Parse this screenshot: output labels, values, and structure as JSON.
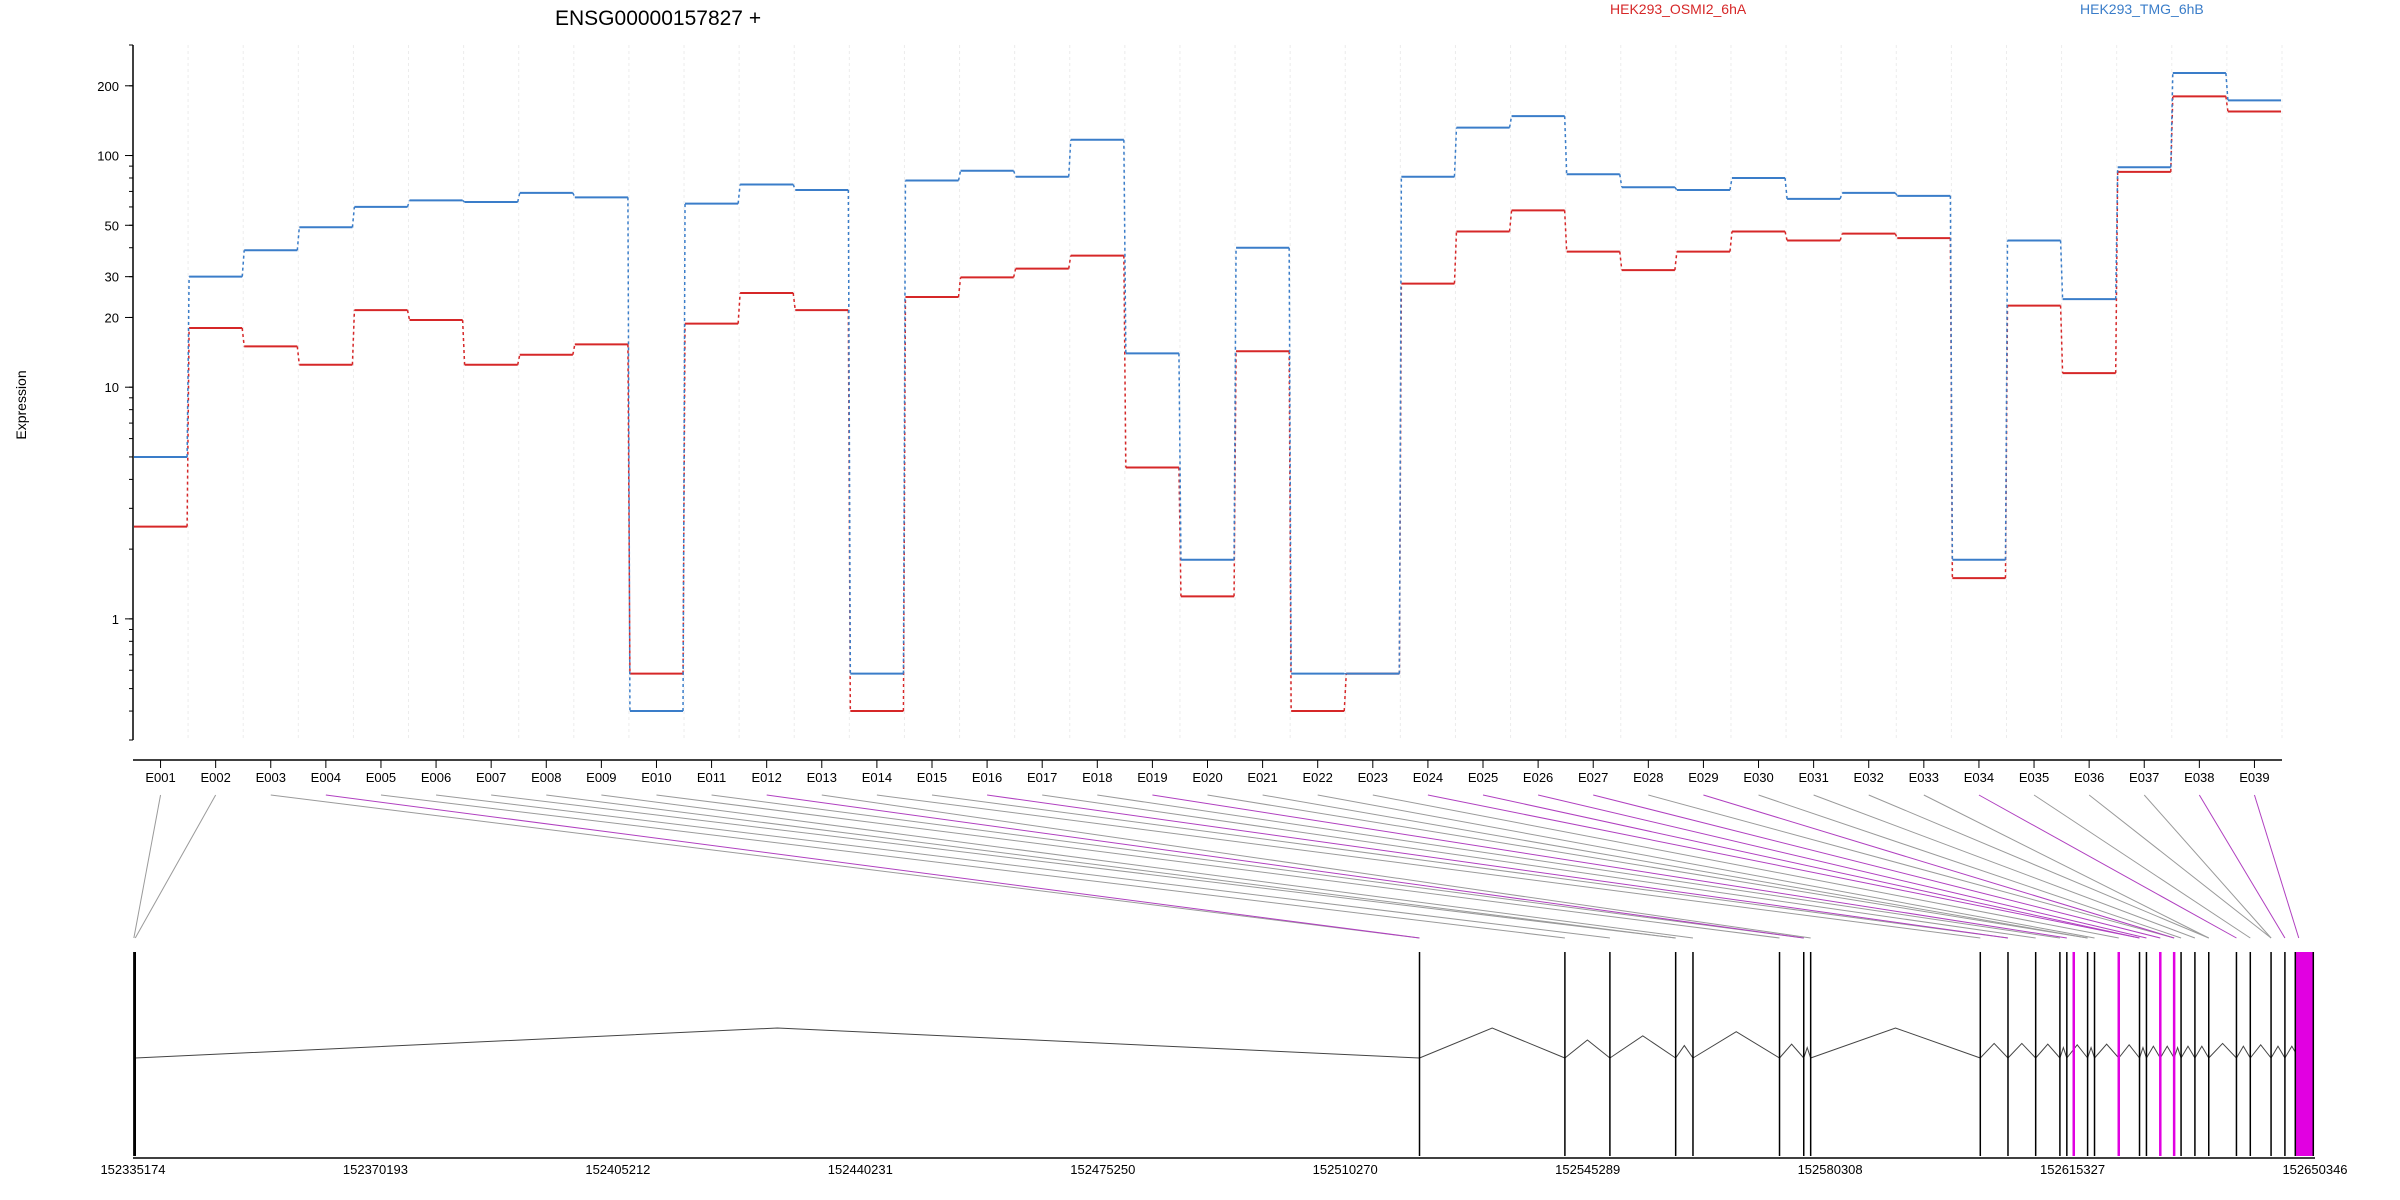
{
  "title": "ENSG00000157827 +",
  "ylabel": "Expression",
  "legend": [
    {
      "name": "HEK293_OSMI2_6hA",
      "color": "#d62728"
    },
    {
      "name": "HEK293_TMG_6hB",
      "color": "#3a7dc9"
    }
  ],
  "chart_data": {
    "type": "line",
    "log_scale": true,
    "title": "ENSG00000157827 +",
    "ylabel": "Expression",
    "ylim": [
      0.3,
      300
    ],
    "y_ticks": [
      1,
      10,
      20,
      30,
      50,
      100,
      200
    ],
    "categories": [
      "E001",
      "E002",
      "E003",
      "E004",
      "E005",
      "E006",
      "E007",
      "E008",
      "E009",
      "E010",
      "E011",
      "E012",
      "E013",
      "E014",
      "E015",
      "E016",
      "E017",
      "E018",
      "E019",
      "E020",
      "E021",
      "E022",
      "E023",
      "E024",
      "E025",
      "E026",
      "E027",
      "E028",
      "E029",
      "E030",
      "E031",
      "E032",
      "E033",
      "E034",
      "E035",
      "E036",
      "E037",
      "E038",
      "E039"
    ],
    "series": [
      {
        "name": "HEK293_OSMI2_6hA",
        "color": "#d62728",
        "values": [
          2.5,
          18,
          15,
          12.5,
          21.5,
          19.5,
          12.5,
          13.8,
          15.3,
          0.58,
          18.8,
          25.5,
          21.5,
          0.4,
          24.5,
          29.8,
          32.5,
          37,
          4.5,
          1.25,
          14.3,
          0.4,
          0.58,
          28,
          47,
          58,
          38.5,
          32,
          38.5,
          47,
          43,
          46,
          44,
          1.5,
          22.5,
          11.5,
          85,
          180,
          155
        ]
      },
      {
        "name": "HEK293_TMG_6hB",
        "color": "#3a7dc9",
        "values": [
          5,
          30,
          39,
          49,
          60,
          64,
          63,
          69,
          66,
          0.4,
          62,
          75,
          71,
          0.58,
          78,
          86,
          81,
          117,
          14,
          1.8,
          40,
          0.58,
          0.58,
          81,
          132,
          148,
          83,
          73,
          71,
          80,
          65,
          69,
          67,
          1.8,
          43,
          24,
          89,
          227,
          173
        ]
      }
    ],
    "gene_model": {
      "coordinate_labels": [
        "152335174",
        "152370193",
        "152405212",
        "152440231",
        "152475250",
        "152510270",
        "152545289",
        "152580308",
        "152615327",
        "152650346"
      ],
      "start": 152335174,
      "end": 152650346,
      "exon_positions": [
        152335300,
        152335500,
        152521000,
        152542000,
        152548500,
        152558000,
        152560500,
        152573000,
        152576500,
        152577500,
        152602000,
        152606000,
        152610000,
        152613500,
        152614500,
        152617500,
        152618500,
        152622000,
        152625000,
        152626000,
        152628000,
        152630000,
        152631000,
        152633000,
        152635000,
        152639000,
        152641000,
        152644000,
        152646000,
        152648000
      ],
      "highlight_exons": [
        "E004",
        "E012",
        "E016",
        "E019",
        "E024",
        "E025",
        "E026",
        "E027",
        "E029",
        "E034",
        "E038",
        "E039"
      ],
      "highlight_positions": [
        152615500,
        152622000,
        152628000,
        152630000
      ],
      "highlight_color": "#e100e1"
    }
  }
}
